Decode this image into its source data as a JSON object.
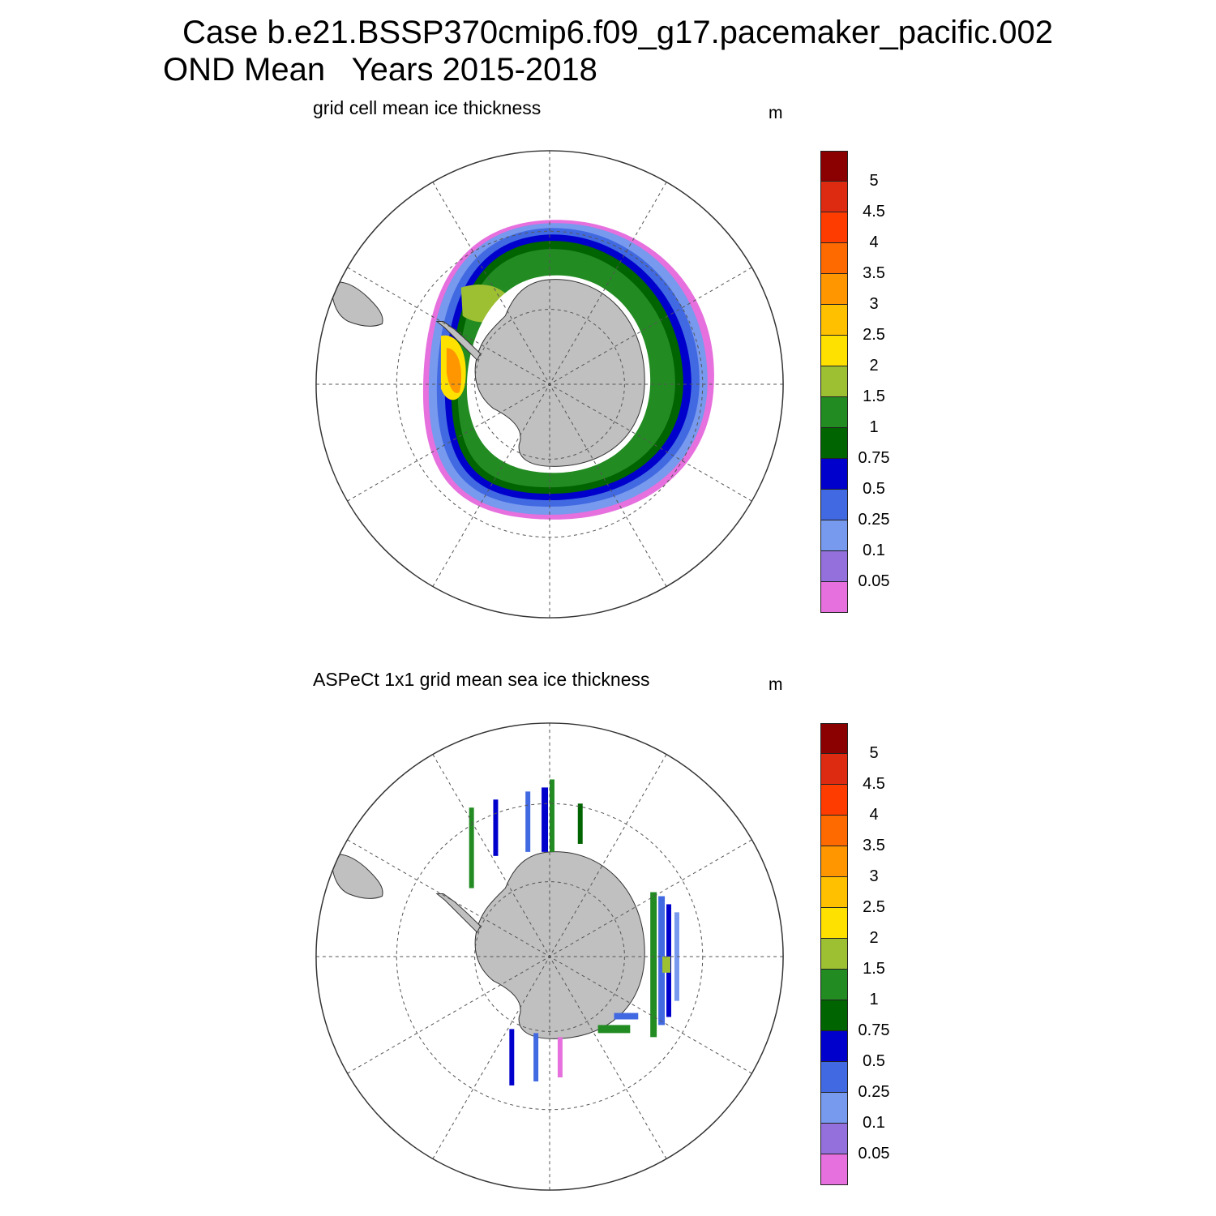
{
  "title": {
    "line1": "Case b.e21.BSSP370cmip6.f09_g17.pacemaker_pacific.002",
    "line2": "OND Mean   Years 2015-2018"
  },
  "panels": [
    {
      "subtitle": "grid cell mean ice thickness",
      "unit": "m"
    },
    {
      "subtitle": "ASPeCt 1x1 grid mean sea ice thickness",
      "unit": "m"
    }
  ],
  "colorbar": {
    "labels": [
      "5",
      "4.5",
      "4",
      "3.5",
      "3",
      "2.5",
      "2",
      "1.5",
      "1",
      "0.75",
      "0.5",
      "0.25",
      "0.1",
      "0.05"
    ],
    "colors": [
      "#8b0000",
      "#dd2b12",
      "#ff3c00",
      "#ff6a00",
      "#ff9600",
      "#ffc000",
      "#ffe100",
      "#9dbf32",
      "#228b22",
      "#006400",
      "#0000cd",
      "#4169e1",
      "#7799ee",
      "#9370db",
      "#e670dd"
    ]
  },
  "colors": {
    "land": "#c0c0c0",
    "land_outline": "#333333",
    "grid_line": "#555555"
  }
}
